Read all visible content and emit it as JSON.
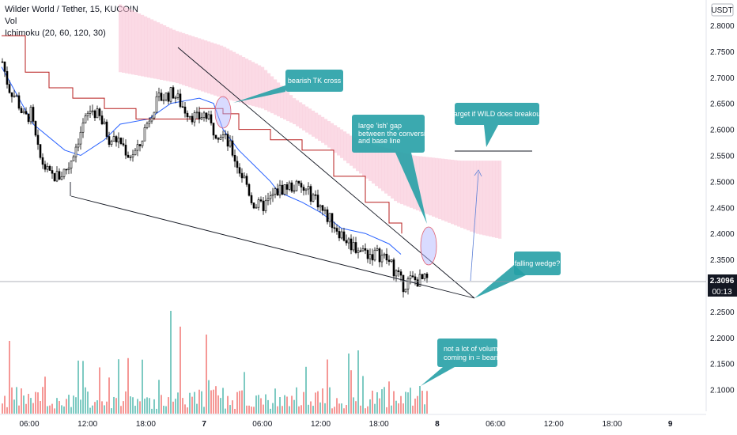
{
  "header": {
    "title": "Wilder World / Tether, 15, KUCOIN",
    "volume_label": "Vol",
    "ichimoku_label": "Ichimoku (20, 60, 120, 30)"
  },
  "price_axis": {
    "currency": "USDT",
    "ticks": [
      "2.8000",
      "2.7500",
      "2.7000",
      "2.6500",
      "2.6000",
      "2.5500",
      "2.5000",
      "2.4500",
      "2.4000",
      "2.3500",
      "2.2500",
      "2.2000",
      "2.1500",
      "2.1000"
    ],
    "tick_values": [
      2.8,
      2.75,
      2.7,
      2.65,
      2.6,
      2.55,
      2.5,
      2.45,
      2.4,
      2.35,
      2.25,
      2.2,
      2.15,
      2.1
    ],
    "current_price": "2.3096",
    "countdown": "00:13"
  },
  "time_axis": {
    "labels": [
      "06:00",
      "12:00",
      "18:00",
      "7",
      "06:00",
      "12:00",
      "18:00",
      "8",
      "06:00",
      "12:00",
      "18:00",
      "9"
    ],
    "bold": [
      false,
      false,
      false,
      true,
      false,
      false,
      false,
      true,
      false,
      false,
      false,
      true
    ]
  },
  "annotations": [
    {
      "id": "bearish-tk",
      "lines": [
        "bearish TK cross"
      ]
    },
    {
      "id": "target",
      "lines": [
        "target if WILD does breakout"
      ]
    },
    {
      "id": "gap",
      "lines": [
        "large 'ish' gap",
        "between the conversion line",
        "and base line"
      ]
    },
    {
      "id": "wedge",
      "lines": [
        "falling wedge?"
      ]
    },
    {
      "id": "volume",
      "lines": [
        "not a lot of volume",
        "coming in = bearish"
      ]
    }
  ],
  "colors": {
    "bull": "#26a69a",
    "bear": "#ef5350",
    "candle": "#000000",
    "conversion_line": "#2962ff",
    "base_line": "#b71c1c",
    "cloud": "#f8bbd0",
    "callout": "#26a0a6"
  },
  "chart_data": {
    "type": "candlestick",
    "symbol": "Wilder World / Tether",
    "interval": "15",
    "exchange": "KUCOIN",
    "ylim": [
      2.05,
      2.82
    ],
    "current_price": 2.3096,
    "x_labels": [
      "06:00",
      "12:00",
      "18:00",
      "7",
      "06:00",
      "12:00",
      "18:00",
      "8",
      "06:00",
      "12:00",
      "18:00",
      "9"
    ],
    "close_anchors": [
      [
        0,
        2.73
      ],
      [
        8,
        2.68
      ],
      [
        18,
        2.66
      ],
      [
        28,
        2.62
      ],
      [
        36,
        2.63
      ],
      [
        46,
        2.55
      ],
      [
        60,
        2.51
      ],
      [
        72,
        2.51
      ],
      [
        84,
        2.53
      ],
      [
        100,
        2.6
      ],
      [
        112,
        2.64
      ],
      [
        124,
        2.62
      ],
      [
        136,
        2.58
      ],
      [
        148,
        2.58
      ],
      [
        160,
        2.55
      ],
      [
        172,
        2.56
      ],
      [
        180,
        2.6
      ],
      [
        190,
        2.64
      ],
      [
        200,
        2.66
      ],
      [
        216,
        2.67
      ],
      [
        230,
        2.64
      ],
      [
        246,
        2.62
      ],
      [
        256,
        2.63
      ],
      [
        266,
        2.6
      ],
      [
        278,
        2.59
      ],
      [
        290,
        2.56
      ],
      [
        300,
        2.52
      ],
      [
        308,
        2.5
      ],
      [
        316,
        2.46
      ],
      [
        326,
        2.45
      ],
      [
        336,
        2.46
      ],
      [
        346,
        2.48
      ],
      [
        358,
        2.49
      ],
      [
        372,
        2.49
      ],
      [
        384,
        2.48
      ],
      [
        396,
        2.47
      ],
      [
        406,
        2.44
      ],
      [
        418,
        2.42
      ],
      [
        428,
        2.4
      ],
      [
        440,
        2.38
      ],
      [
        452,
        2.37
      ],
      [
        464,
        2.36
      ],
      [
        476,
        2.36
      ],
      [
        486,
        2.35
      ],
      [
        496,
        2.33
      ],
      [
        506,
        2.3
      ],
      [
        515,
        2.31
      ]
    ],
    "conversion_line": [
      [
        0,
        2.72
      ],
      [
        40,
        2.61
      ],
      [
        80,
        2.56
      ],
      [
        100,
        2.55
      ],
      [
        130,
        2.58
      ],
      [
        150,
        2.61
      ],
      [
        186,
        2.62
      ],
      [
        214,
        2.65
      ],
      [
        250,
        2.66
      ],
      [
        268,
        2.65
      ],
      [
        280,
        2.6
      ],
      [
        300,
        2.56
      ],
      [
        320,
        2.53
      ],
      [
        340,
        2.5
      ],
      [
        350,
        2.48
      ],
      [
        380,
        2.46
      ],
      [
        404,
        2.44
      ],
      [
        430,
        2.41
      ],
      [
        460,
        2.4
      ],
      [
        490,
        2.38
      ],
      [
        505,
        2.36
      ]
    ],
    "base_line": [
      [
        0,
        2.78
      ],
      [
        30,
        2.71
      ],
      [
        60,
        2.68
      ],
      [
        90,
        2.66
      ],
      [
        130,
        2.64
      ],
      [
        170,
        2.62
      ],
      [
        210,
        2.62
      ],
      [
        250,
        2.64
      ],
      [
        280,
        2.63
      ],
      [
        300,
        2.6
      ],
      [
        340,
        2.58
      ],
      [
        380,
        2.56
      ],
      [
        420,
        2.51
      ],
      [
        460,
        2.46
      ],
      [
        490,
        2.42
      ],
      [
        506,
        2.4
      ]
    ],
    "cloud_upper": [
      [
        150,
        2.84
      ],
      [
        220,
        2.79
      ],
      [
        280,
        2.76
      ],
      [
        330,
        2.72
      ],
      [
        370,
        2.66
      ],
      [
        410,
        2.62
      ],
      [
        450,
        2.58
      ],
      [
        520,
        2.55
      ],
      [
        580,
        2.54
      ],
      [
        630,
        2.54
      ]
    ],
    "cloud_lower": [
      [
        150,
        2.71
      ],
      [
        220,
        2.69
      ],
      [
        280,
        2.66
      ],
      [
        330,
        2.64
      ],
      [
        370,
        2.61
      ],
      [
        410,
        2.57
      ],
      [
        450,
        2.52
      ],
      [
        500,
        2.46
      ],
      [
        550,
        2.43
      ],
      [
        600,
        2.4
      ],
      [
        630,
        2.39
      ]
    ],
    "volume_max": 160,
    "volume_note": "relative volume bars, no absolute scale shown"
  }
}
